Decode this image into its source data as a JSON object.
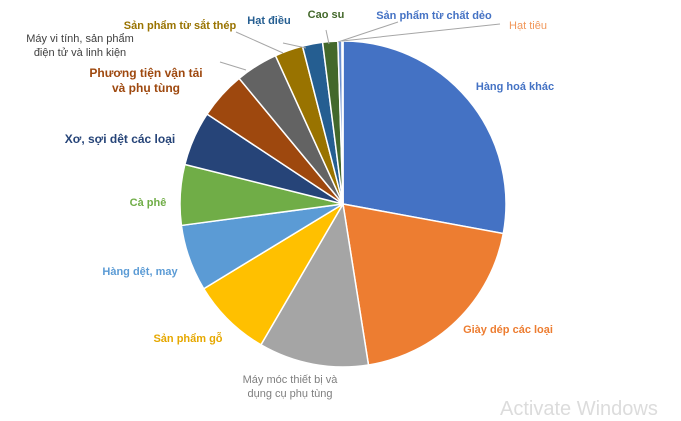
{
  "chart_data": {
    "type": "pie",
    "title": "",
    "categories": [
      "Hàng hoá khác",
      "Giày dép các loại",
      "Máy móc thiết bị và dụng cụ phụ tùng",
      "Sản phẩm gỗ",
      "Hàng dệt, may",
      "Cà phê",
      "Xơ, sợi dệt các loại",
      "Phương tiện vận tải và phụ tùng",
      "Máy vi tính, sản phẩm điện tử và linh kiện",
      "Sản phẩm từ sắt thép",
      "Hạt điều",
      "Cao su",
      "Sản phẩm từ chất dẻo",
      "Hạt tiêu"
    ],
    "values": [
      27.9,
      19.6,
      10.9,
      7.9,
      6.6,
      6.0,
      5.4,
      4.7,
      4.2,
      2.8,
      2.0,
      1.5,
      0.4,
      0.1
    ],
    "colors": [
      "#4472c4",
      "#ed7d31",
      "#a5a5a5",
      "#ffc000",
      "#5b9bd5",
      "#70ad47",
      "#264478",
      "#9e480e",
      "#636363",
      "#997300",
      "#255e91",
      "#43682b",
      "#698ed0",
      "#f1975a"
    ],
    "label_colors": [
      "#4472c4",
      "#ed7d31",
      "#7f7f7f",
      "#e6a800",
      "#5b9bd5",
      "#70ad47",
      "#264478",
      "#9e480e",
      "#404040",
      "#997300",
      "#255e91",
      "#43682b",
      "#4472c4",
      "#f1975a"
    ],
    "legend": "none"
  },
  "watermark": {
    "text": "Activate Windows"
  }
}
